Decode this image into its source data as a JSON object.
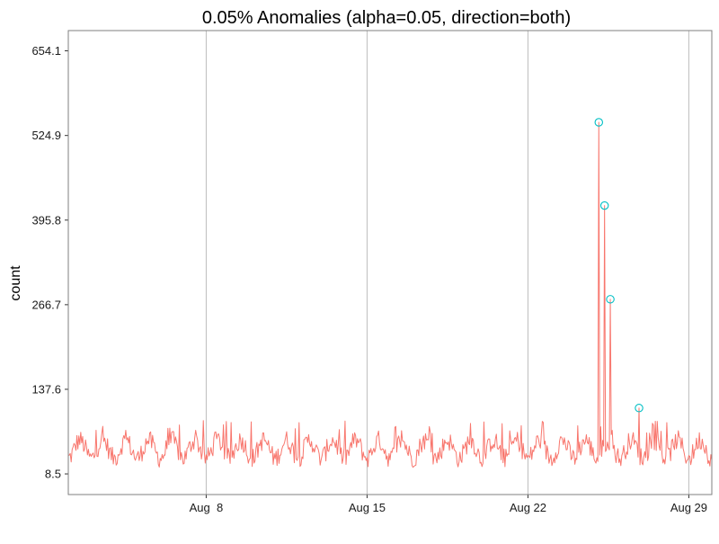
{
  "chart_data": {
    "type": "line",
    "title": "0.05% Anomalies (alpha=0.05, direction=both)",
    "xlabel": "",
    "ylabel": "count",
    "grid": "vertical-only",
    "legend": "none",
    "x_ticks": [
      "Aug  8",
      "Aug 15",
      "Aug 22",
      "Aug 29"
    ],
    "x_tick_dates": [
      "2015-08-08",
      "2015-08-15",
      "2015-08-22",
      "2015-08-29"
    ],
    "xlim": [
      "2015-08-02",
      "2015-08-30"
    ],
    "y_ticks": [
      8.5,
      137.6,
      266.7,
      395.8,
      524.9,
      654.1
    ],
    "y_tick_labels": [
      "8.5",
      "137.6",
      "266.7",
      "395.8",
      "524.9",
      "654.1"
    ],
    "ylim": [
      -23,
      685
    ],
    "series": [
      {
        "color": "#F8766D",
        "baseline": {
          "min": 20,
          "max": 70,
          "typical_peak": 90
        },
        "spikes": [
          {
            "x": "2015-08-25 02:00",
            "y": 545
          },
          {
            "x": "2015-08-25 08:00",
            "y": 418
          },
          {
            "x": "2015-08-25 14:00",
            "y": 275
          },
          {
            "x": "2015-08-26 20:00",
            "y": 109
          }
        ]
      }
    ],
    "anomalies": {
      "color": "#00BFC4",
      "points": [
        {
          "x": "2015-08-25 02:00",
          "y": 545
        },
        {
          "x": "2015-08-25 08:00",
          "y": 418
        },
        {
          "x": "2015-08-25 14:00",
          "y": 275
        },
        {
          "x": "2015-08-26 20:00",
          "y": 109
        }
      ]
    },
    "border_color": "#7F7F7F",
    "grid_color": "#BEBEBE"
  }
}
